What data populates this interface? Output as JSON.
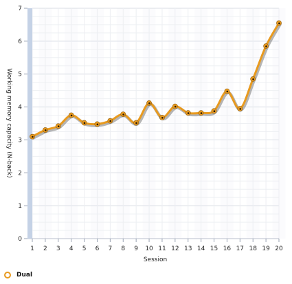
{
  "chart_data": {
    "type": "line",
    "title": "",
    "xlabel": "Session",
    "ylabel": "Working memory capacity (N-back)",
    "x": [
      1,
      2,
      3,
      4,
      5,
      6,
      7,
      8,
      9,
      10,
      11,
      12,
      13,
      14,
      15,
      16,
      17,
      18,
      19,
      20
    ],
    "xlim": [
      1,
      20
    ],
    "ylim": [
      0,
      7
    ],
    "yticks": [
      0,
      1,
      2,
      3,
      4,
      5,
      6,
      7
    ],
    "grid": true,
    "legend_position": "bottom-left",
    "series": [
      {
        "name": "Dual",
        "color": "#e89a1f",
        "values": [
          3.1,
          3.3,
          3.42,
          3.75,
          3.52,
          3.48,
          3.58,
          3.78,
          3.52,
          4.12,
          3.68,
          4.02,
          3.82,
          3.82,
          3.88,
          4.48,
          3.95,
          4.85,
          5.85,
          6.55
        ]
      }
    ]
  }
}
